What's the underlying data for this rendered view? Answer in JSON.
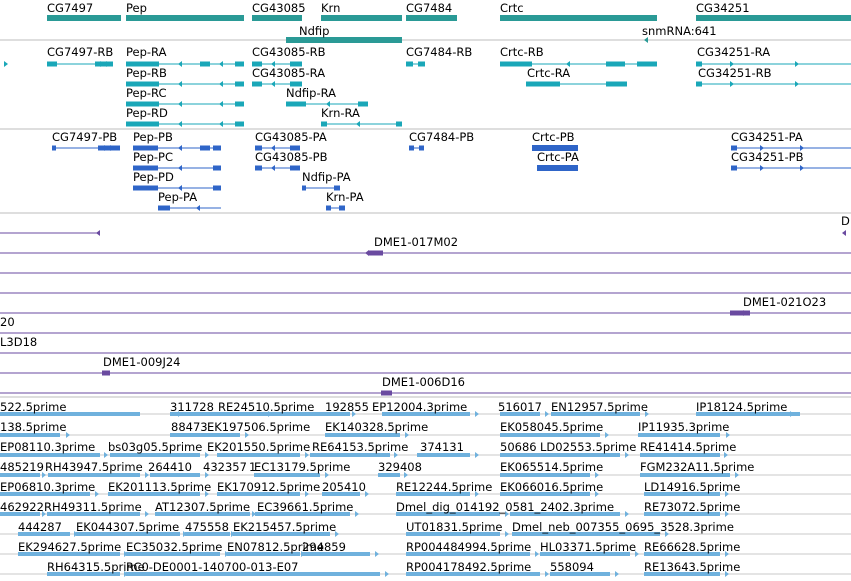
{
  "colors": {
    "gene": "#2a9a96",
    "transcript": "#1aa7b8",
    "cds": "#2f65c8",
    "clone": "#6a4aa0",
    "est": "#6fb1dd",
    "divider": "#bcbcbc",
    "est_line": "#c8c8c8"
  },
  "tracks": {
    "genes": {
      "labels": [
        "CG7497",
        "Pep",
        "CG43085",
        "Krn",
        "CG7484",
        "Crtc",
        "CG34251",
        "Ndfip",
        "snmRNA:641"
      ]
    },
    "transcripts": {
      "labels": [
        "CG7497-RB",
        "Pep-RA",
        "CG43085-RB",
        "CG7484-RB",
        "Crtc-RB",
        "CG34251-RA",
        "Pep-RB",
        "CG43085-RA",
        "Crtc-RA",
        "CG34251-RB",
        "Pep-RC",
        "Ndfip-RA",
        "Pep-RD",
        "Krn-RA"
      ]
    },
    "cds": {
      "labels": [
        "CG7497-PB",
        "Pep-PB",
        "CG43085-PA",
        "CG7484-PB",
        "Crtc-PB",
        "CG34251-PA",
        "Pep-PC",
        "CG43085-PB",
        "Crtc-PA",
        "CG34251-PB",
        "Pep-PD",
        "Ndfip-PA",
        "Pep-PA",
        "Krn-PA"
      ]
    },
    "clones": {
      "labels": [
        "D",
        "DME1-017M02",
        "DME1-021O23",
        "20",
        "L3D18",
        "DME1-009J24",
        "DME1-006D16"
      ]
    },
    "ests": {
      "labels": [
        "522.5prime",
        "311728",
        "RE24510.5prime",
        "192855",
        "EP12004.3prime",
        "516017",
        "EN12957.5prime",
        "IP18124.5prime",
        "138.5prime",
        "88473",
        "EK197506.5prime",
        "EK140328.5prime",
        "EK058045.5prime",
        "IP11935.3prime",
        "EP08110.3prime",
        "bs03g05.5prime",
        "EK201550.5prime",
        "RE64153.5prime",
        "374131",
        "50686",
        "LD02553.5prime",
        "RE41414.5prime",
        "485219",
        "RH43947.5prime",
        "264410",
        "432357",
        "1",
        "EC13179.5prime",
        "329408",
        "EK065514.5prime",
        "FGM232A11.5prime",
        "EP06810.3prime",
        "EK201113.5prime",
        "EK170912.5prime",
        "205410",
        "RE12244.5prime",
        "EK066016.5prime",
        "LD14916.5prime",
        "462922",
        "RH49311.5prime",
        "AT12307.5prime",
        "EC39661.5prime",
        "Dmel_dig_014192_0581_2402.3prime",
        "RE73072.5prime",
        "444287",
        "EK044307.5prime",
        "475558",
        "EK215457.5prime",
        "UT01831.5prime",
        "Dmel_neb_007355_0695_3528.3prime",
        "EK294627.5prime",
        "EC35032.5prime",
        "EN07812.5prime",
        "294859",
        "RP004484994.5prime",
        "HL03371.5prime",
        "RE66628.5prime",
        "RH64315.5prime",
        "RC0-DE0001-140700-013-E07",
        "RP004178492.5prime",
        "558094",
        "RE13643.5prime"
      ]
    }
  }
}
